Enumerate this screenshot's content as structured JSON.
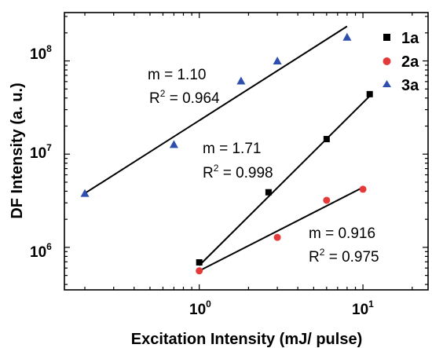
{
  "chart_data": {
    "type": "scatter",
    "title": "",
    "xlabel": "Excitation Intensity (mJ/ pulse)",
    "ylabel": "DF Intensity (a. u.)",
    "xscale": "log",
    "yscale": "log",
    "xlim": [
      0.15,
      25
    ],
    "ylim": [
      350000,
      330000000
    ],
    "x_ticks": [
      {
        "base": "10",
        "exp": "0"
      },
      {
        "base": "10",
        "exp": "1"
      }
    ],
    "y_ticks": [
      {
        "base": "10",
        "exp": "6"
      },
      {
        "base": "10",
        "exp": "7"
      },
      {
        "base": "10",
        "exp": "8"
      }
    ],
    "legend_position": "top-right",
    "series": [
      {
        "name": "1a",
        "marker": "square",
        "color": "#000000",
        "x": [
          1.0,
          2.65,
          6.0,
          11.0
        ],
        "y": [
          690000,
          3900000,
          14500000,
          44000000
        ],
        "fit": {
          "x0": 1.0,
          "x1": 11.0,
          "y0": 640000,
          "y1": 42000000
        },
        "annotation": {
          "slope": "m = 1.71",
          "r2_prefix": "R",
          "r2_exp": "2",
          "r2_value": " = 0.998"
        }
      },
      {
        "name": "2a",
        "marker": "circle",
        "color": "#e53a3a",
        "x": [
          1.0,
          3.0,
          6.0,
          10.0
        ],
        "y": [
          560000,
          1280000,
          3200000,
          4200000
        ],
        "fit": {
          "x0": 1.0,
          "x1": 10.0,
          "y0": 560000,
          "y1": 4400000
        },
        "annotation": {
          "slope": "m = 0.916",
          "r2_prefix": "R",
          "r2_exp": "2",
          "r2_value": " = 0.975"
        }
      },
      {
        "name": "3a",
        "marker": "triangle",
        "color": "#2f4faf",
        "x": [
          0.2,
          0.7,
          1.8,
          3.0,
          8.0
        ],
        "y": [
          3800000,
          12700000,
          61000000,
          100000000,
          180000000
        ],
        "fit": {
          "x0": 0.2,
          "x1": 8.0,
          "y0": 3800000,
          "y1": 235000000
        },
        "annotation": {
          "slope": "m = 1.10",
          "r2_prefix": "R",
          "r2_exp": "2",
          "r2_value": " = 0.964"
        }
      }
    ]
  }
}
